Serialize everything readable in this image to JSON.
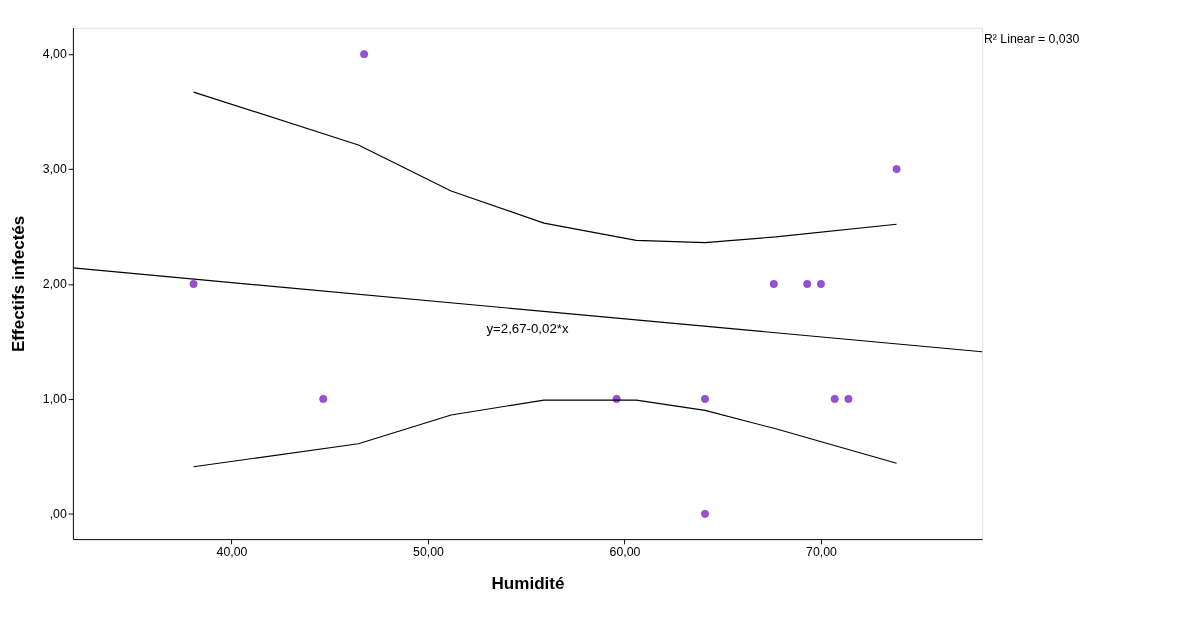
{
  "chart_data": {
    "type": "scatter",
    "xlabel": "Humidité",
    "ylabel": "Effectifs infectés",
    "xlim": [
      31.93,
      78.2
    ],
    "ylim": [
      -0.22,
      4.23
    ],
    "xticks": [
      {
        "value": 40,
        "label": "40,00"
      },
      {
        "value": 50,
        "label": "50,00"
      },
      {
        "value": 60,
        "label": "60,00"
      },
      {
        "value": 70,
        "label": "70,00"
      }
    ],
    "yticks": [
      {
        "value": 0,
        "label": ",00"
      },
      {
        "value": 1,
        "label": "1,00"
      },
      {
        "value": 2,
        "label": "2,00"
      },
      {
        "value": 3,
        "label": "3,00"
      },
      {
        "value": 4,
        "label": "4,00"
      }
    ],
    "grid": false,
    "series": [
      {
        "marker": "circle",
        "color": "#9b4fd6",
        "x": [
          38.07,
          44.67,
          46.75,
          59.6,
          64.1,
          64.1,
          67.6,
          69.3,
          70.0,
          70.7,
          71.4,
          73.85
        ],
        "values": [
          2,
          1,
          4,
          1,
          1,
          0,
          2,
          2,
          2,
          1,
          1,
          3
        ]
      },
      {
        "type": "line",
        "color": "#000000",
        "line_style": "solid",
        "x": [
          31.93,
          78.2
        ],
        "values": [
          2.14,
          1.41
        ],
        "marker": "none"
      },
      {
        "type": "line",
        "color": "#000000",
        "line_style": "solid",
        "x": [
          38.07,
          46.46,
          51.18,
          55.9,
          60.6,
          64.1,
          67.7,
          73.85
        ],
        "values": [
          3.67,
          3.21,
          2.81,
          2.53,
          2.38,
          2.36,
          2.41,
          2.52
        ],
        "marker": "none"
      },
      {
        "type": "line",
        "color": "#000000",
        "line_style": "solid",
        "x": [
          38.07,
          46.46,
          51.18,
          55.9,
          60.6,
          64.1,
          67.7,
          73.85
        ],
        "values": [
          0.41,
          0.61,
          0.86,
          0.99,
          0.99,
          0.9,
          0.74,
          0.44
        ],
        "marker": "none"
      }
    ],
    "annotations": [
      "R² Linear = 0,030",
      "y=2,67-0,02*x"
    ]
  }
}
